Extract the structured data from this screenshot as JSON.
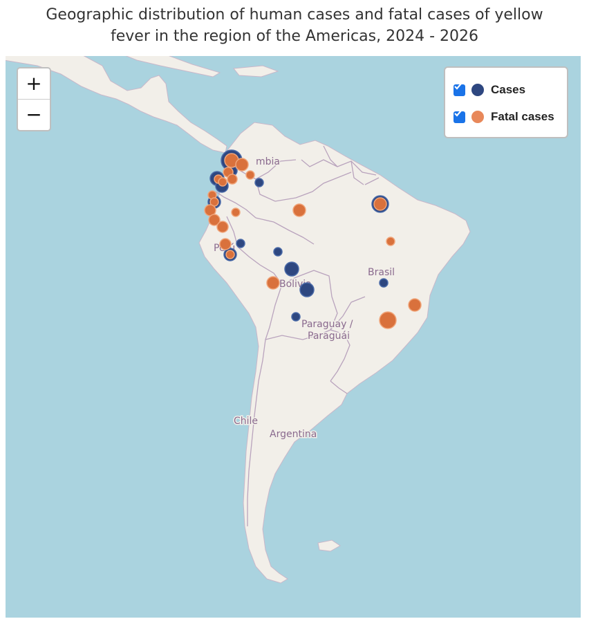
{
  "title": {
    "line1": "Geographic distribution of human cases and fatal cases of yellow",
    "line2": "fever in the region of the Americas, 2024 - 2026"
  },
  "zoom": {
    "in": "+",
    "out": "−"
  },
  "legend": [
    {
      "label": "Cases",
      "color": "#2e4780",
      "checked": true
    },
    {
      "label": "Fatal cases",
      "color": "#e8885a",
      "checked": true
    }
  ],
  "map_labels": {
    "colombia": "mbia",
    "peru": "Perú",
    "bolivia": "Bolivia",
    "brasil": "Brasil",
    "paraguay_1": "Paraguay /",
    "paraguay_2": "Paraguái",
    "chile": "Chile",
    "argentina": "Argentina"
  },
  "colors": {
    "water": "#aad3df",
    "land": "#f2efe9",
    "border": "#b9a3bd",
    "cases": "#2e4780",
    "fatal": "#e07b45"
  }
}
